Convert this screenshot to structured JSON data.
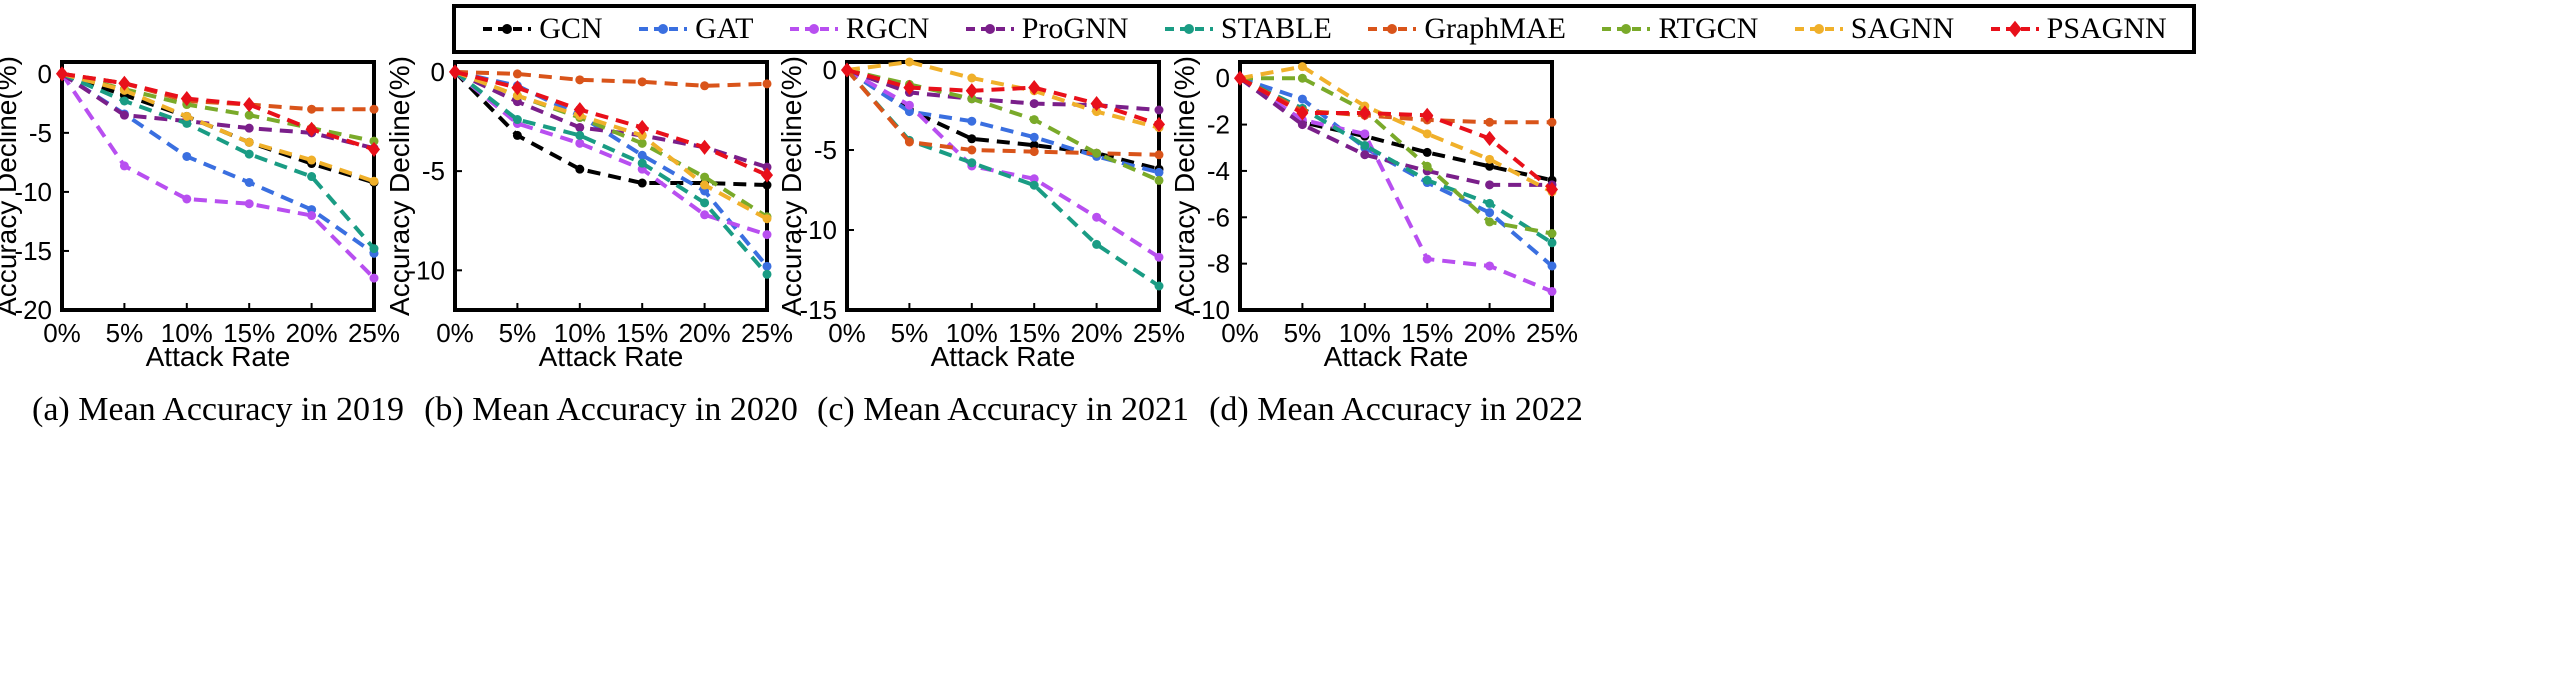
{
  "legend": {
    "placement": "top-center",
    "entries": [
      {
        "name": "GCN",
        "color": "#000000",
        "marker": "circle"
      },
      {
        "name": "GAT",
        "color": "#3a6fe0",
        "marker": "circle"
      },
      {
        "name": "RGCN",
        "color": "#b84ff0",
        "marker": "circle"
      },
      {
        "name": "ProGNN",
        "color": "#7a1f8a",
        "marker": "circle"
      },
      {
        "name": "STABLE",
        "color": "#1a9c84",
        "marker": "circle"
      },
      {
        "name": "GraphMAE",
        "color": "#d9541a",
        "marker": "circle"
      },
      {
        "name": "RTGCN",
        "color": "#7aaa2a",
        "marker": "circle"
      },
      {
        "name": "SAGNN",
        "color": "#f0b02a",
        "marker": "circle"
      },
      {
        "name": "PSAGNN",
        "color": "#e8101a",
        "marker": "diamond"
      }
    ]
  },
  "chart_data": [
    {
      "type": "line",
      "caption": "(a) Mean Accuracy in 2019",
      "xlabel": "Attack Rate",
      "ylabel": "Accuracy Decline(%)",
      "categories": [
        "0%",
        "5%",
        "10%",
        "15%",
        "20%",
        "25%"
      ],
      "ylim": [
        -20,
        1
      ],
      "yticks": [
        0,
        -5,
        -10,
        -15,
        -20
      ],
      "series": [
        {
          "name": "GCN",
          "values": [
            0,
            -1.8,
            -3.6,
            -5.8,
            -7.6,
            -9.2
          ]
        },
        {
          "name": "GAT",
          "values": [
            0,
            -3.4,
            -7.0,
            -9.2,
            -11.5,
            -15.2
          ]
        },
        {
          "name": "RGCN",
          "values": [
            0,
            -7.8,
            -10.6,
            -11.0,
            -12.0,
            -17.3
          ]
        },
        {
          "name": "ProGNN",
          "values": [
            0,
            -3.5,
            -4.0,
            -4.6,
            -5.0,
            -6.3
          ]
        },
        {
          "name": "STABLE",
          "values": [
            0,
            -2.3,
            -4.2,
            -6.8,
            -8.7,
            -14.8
          ]
        },
        {
          "name": "GraphMAE",
          "values": [
            0,
            -0.8,
            -2.3,
            -2.6,
            -3.0,
            -3.0
          ]
        },
        {
          "name": "RTGCN",
          "values": [
            0,
            -1.3,
            -2.6,
            -3.5,
            -4.6,
            -5.7
          ]
        },
        {
          "name": "SAGNN",
          "values": [
            0,
            -1.4,
            -3.6,
            -5.8,
            -7.3,
            -9.1
          ]
        },
        {
          "name": "PSAGNN",
          "values": [
            0,
            -0.8,
            -2.1,
            -2.6,
            -4.7,
            -6.4
          ]
        }
      ]
    },
    {
      "type": "line",
      "caption": "(b) Mean Accuracy in 2020",
      "xlabel": "Attack Rate",
      "ylabel": "Accuracy Decline(%)",
      "categories": [
        "0%",
        "5%",
        "10%",
        "15%",
        "20%",
        "25%"
      ],
      "ylim": [
        -12,
        0.5
      ],
      "yticks": [
        0,
        -5,
        -10
      ],
      "series": [
        {
          "name": "GCN",
          "values": [
            0,
            -3.2,
            -4.9,
            -5.6,
            -5.6,
            -5.7
          ]
        },
        {
          "name": "GAT",
          "values": [
            0,
            -0.7,
            -2.2,
            -4.2,
            -6.0,
            -9.8
          ]
        },
        {
          "name": "RGCN",
          "values": [
            0,
            -2.6,
            -3.6,
            -4.9,
            -7.2,
            -8.2
          ]
        },
        {
          "name": "ProGNN",
          "values": [
            0,
            -1.5,
            -2.8,
            -3.2,
            -3.8,
            -4.8
          ]
        },
        {
          "name": "STABLE",
          "values": [
            0,
            -2.4,
            -3.2,
            -4.6,
            -6.6,
            -10.2
          ]
        },
        {
          "name": "GraphMAE",
          "values": [
            0,
            -0.1,
            -0.4,
            -0.5,
            -0.7,
            -0.6
          ]
        },
        {
          "name": "RTGCN",
          "values": [
            0,
            -1.2,
            -2.3,
            -3.6,
            -5.3,
            -7.3
          ]
        },
        {
          "name": "SAGNN",
          "values": [
            0,
            -1.2,
            -2.2,
            -3.2,
            -5.7,
            -7.4
          ]
        },
        {
          "name": "PSAGNN",
          "values": [
            0,
            -0.8,
            -1.9,
            -2.8,
            -3.8,
            -5.2
          ]
        }
      ]
    },
    {
      "type": "line",
      "caption": "(c) Mean Accuracy in 2021",
      "xlabel": "Attack Rate",
      "ylabel": "Accuracy Decline(%)",
      "categories": [
        "0%",
        "5%",
        "10%",
        "15%",
        "20%",
        "25%"
      ],
      "ylim": [
        -15,
        0.5
      ],
      "yticks": [
        0,
        -5,
        -10,
        -15
      ],
      "series": [
        {
          "name": "GCN",
          "values": [
            0,
            -2.5,
            -4.3,
            -4.7,
            -5.2,
            -6.2
          ]
        },
        {
          "name": "GAT",
          "values": [
            0,
            -2.6,
            -3.2,
            -4.2,
            -5.4,
            -6.4
          ]
        },
        {
          "name": "RGCN",
          "values": [
            0,
            -2.2,
            -6.0,
            -6.8,
            -9.2,
            -11.7
          ]
        },
        {
          "name": "ProGNN",
          "values": [
            0,
            -1.4,
            -1.8,
            -2.1,
            -2.2,
            -2.5
          ]
        },
        {
          "name": "STABLE",
          "values": [
            0,
            -4.4,
            -5.8,
            -7.2,
            -10.9,
            -13.5
          ]
        },
        {
          "name": "GraphMAE",
          "values": [
            0,
            -4.5,
            -5.0,
            -5.1,
            -5.2,
            -5.3
          ]
        },
        {
          "name": "RTGCN",
          "values": [
            0,
            -0.9,
            -1.8,
            -3.1,
            -5.2,
            -6.9
          ]
        },
        {
          "name": "SAGNN",
          "values": [
            0,
            0.5,
            -0.5,
            -1.3,
            -2.6,
            -3.6
          ]
        },
        {
          "name": "PSAGNN",
          "values": [
            0,
            -1.1,
            -1.3,
            -1.1,
            -2.1,
            -3.4
          ]
        }
      ]
    },
    {
      "type": "line",
      "caption": "(d) Mean Accuracy in 2022",
      "xlabel": "Attack Rate",
      "ylabel": "Accuracy Decline(%)",
      "categories": [
        "0%",
        "5%",
        "10%",
        "15%",
        "20%",
        "25%"
      ],
      "ylim": [
        -10,
        0.7
      ],
      "yticks": [
        0,
        -2,
        -4,
        -6,
        -8,
        -10
      ],
      "series": [
        {
          "name": "GCN",
          "values": [
            0,
            -1.9,
            -2.5,
            -3.2,
            -3.8,
            -4.4
          ]
        },
        {
          "name": "GAT",
          "values": [
            0,
            -0.9,
            -3.0,
            -4.5,
            -5.8,
            -8.1
          ]
        },
        {
          "name": "RGCN",
          "values": [
            0,
            -1.8,
            -2.4,
            -7.8,
            -8.1,
            -9.2
          ]
        },
        {
          "name": "ProGNN",
          "values": [
            0,
            -2.0,
            -3.3,
            -4.0,
            -4.6,
            -4.6
          ]
        },
        {
          "name": "STABLE",
          "values": [
            0,
            -1.3,
            -2.9,
            -4.4,
            -5.4,
            -7.1
          ]
        },
        {
          "name": "GraphMAE",
          "values": [
            0,
            -1.4,
            -1.6,
            -1.8,
            -1.9,
            -1.9
          ]
        },
        {
          "name": "RTGCN",
          "values": [
            0,
            0.0,
            -1.4,
            -3.8,
            -6.2,
            -6.7
          ]
        },
        {
          "name": "SAGNN",
          "values": [
            0,
            0.5,
            -1.2,
            -2.4,
            -3.5,
            -4.9
          ]
        },
        {
          "name": "PSAGNN",
          "values": [
            0,
            -1.5,
            -1.5,
            -1.6,
            -2.6,
            -4.8
          ]
        }
      ]
    }
  ]
}
